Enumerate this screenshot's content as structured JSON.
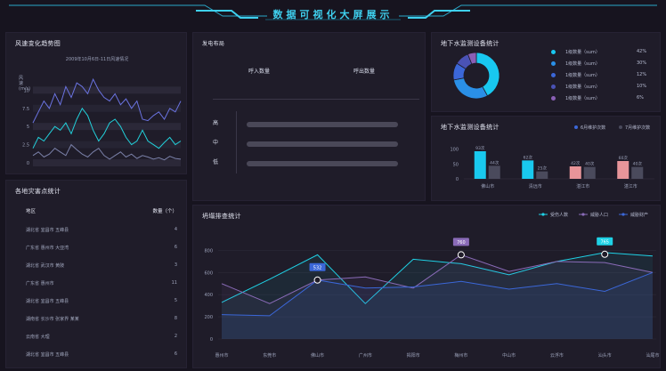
{
  "header": {
    "title": "数据可视化大屏展示"
  },
  "wind": {
    "title": "风速变化趋势图",
    "subtitle": "2009年10月6日-11日风速情况",
    "ylabel": "风速(m/s)",
    "yticks": [
      "10",
      "7.5",
      "5",
      "2.5",
      "0"
    ]
  },
  "disaster": {
    "title": "各地灾害点统计",
    "header_region": "地区",
    "header_count": "数量（个）",
    "rows": [
      {
        "region": "湖北省 宜昌市 五峰县",
        "count": "4"
      },
      {
        "region": "广东省 惠州市 大亚湾",
        "count": "6"
      },
      {
        "region": "湖北省 武汉市 黄陂",
        "count": "3"
      },
      {
        "region": "广东省 惠州市",
        "count": "11"
      },
      {
        "region": "湖北省 宜昌市 五峰县",
        "count": "5"
      },
      {
        "region": "湖南省 长沙市 张家界 某某",
        "count": "8"
      },
      {
        "region": "云南省 大理",
        "count": "2"
      },
      {
        "region": "湖北省 宜昌市 五峰县",
        "count": "6"
      }
    ]
  },
  "power": {
    "title": "发电布局",
    "col1": "呼入数量",
    "col2": "呼出数量",
    "row_labels": [
      "高",
      "中",
      "低"
    ]
  },
  "groundwater": {
    "title": "地下水监测设备统计",
    "legend": [
      {
        "label": "1级数量（sum）",
        "pct": "42%",
        "color": "#18c8f0"
      },
      {
        "label": "1级数量（sum）",
        "pct": "30%",
        "color": "#2a8fe6"
      },
      {
        "label": "1级数量（sum）",
        "pct": "12%",
        "color": "#3b67d8"
      },
      {
        "label": "1级数量（sum）",
        "pct": "10%",
        "color": "#4a52b5"
      },
      {
        "label": "1级数量（sum）",
        "pct": "6%",
        "color": "#8a5fb5"
      }
    ]
  },
  "devices": {
    "title": "地下水监测设备统计",
    "legend1": "6月维护次数",
    "legend2": "7月维护次数",
    "yticks": [
      "100",
      "50",
      "0"
    ]
  },
  "incidents": {
    "title": "坍塌排查统计",
    "legend": [
      "受伤人数",
      "威胁人口",
      "威胁财产"
    ],
    "yticks": [
      "800",
      "600",
      "400",
      "200",
      "0"
    ],
    "tooltips": [
      "532",
      "760",
      "765"
    ]
  },
  "chart_data": [
    {
      "type": "line",
      "title": "风速变化趋势图",
      "subtitle": "2009年10月6日-11日风速情况",
      "ylabel": "风速(m/s)",
      "ylim": [
        0,
        12
      ],
      "series": [
        {
          "values": [
            5.5,
            7.0,
            8.5,
            7.5,
            9.5,
            8.0,
            10.5,
            9.0,
            11.0,
            10.5,
            9.5,
            11.5,
            10.0,
            9.0,
            8.5,
            9.5,
            8.0,
            8.8,
            7.5,
            8.5,
            6.0,
            5.8,
            6.5,
            7.0,
            6.0,
            7.5,
            7.0,
            8.5
          ]
        },
        {
          "values": [
            2.0,
            3.5,
            3.0,
            4.0,
            5.0,
            4.5,
            5.5,
            4.0,
            6.0,
            7.5,
            6.5,
            4.5,
            3.0,
            4.0,
            5.5,
            6.0,
            5.0,
            3.5,
            2.5,
            3.0,
            4.5,
            3.0,
            2.5,
            2.0,
            2.8,
            3.5,
            2.5,
            3.0
          ]
        },
        {
          "values": [
            1.0,
            1.5,
            0.8,
            1.2,
            2.0,
            1.5,
            1.0,
            2.5,
            1.8,
            1.2,
            0.8,
            1.5,
            2.0,
            1.0,
            0.5,
            1.0,
            1.5,
            0.8,
            1.2,
            0.6,
            1.0,
            0.8,
            0.5,
            0.7,
            0.4,
            0.9,
            0.6,
            0.5
          ]
        }
      ]
    },
    {
      "type": "pie",
      "title": "地下水监测设备统计",
      "values": [
        42,
        30,
        12,
        10,
        6
      ]
    },
    {
      "type": "bar",
      "title": "地下水监测设备统计",
      "categories": [
        "佛山市",
        "清远市",
        "湛江市",
        "湛江市"
      ],
      "series": [
        {
          "name": "6月维护次数",
          "values": [
            93,
            62,
            42,
            60
          ],
          "labels": [
            "93次",
            "62次",
            "42次",
            "60次"
          ],
          "colors": [
            "#19c9ee",
            "#19c9ee",
            "#e8959a",
            "#e8959a"
          ]
        },
        {
          "name": "7月维护次数",
          "values": [
            44,
            25,
            40,
            40
          ],
          "labels": [
            "44次",
            "25次",
            "40次",
            "40次"
          ]
        }
      ],
      "ylim": [
        0,
        120
      ]
    },
    {
      "type": "line",
      "title": "坍塌排查统计",
      "categories": [
        "惠州市",
        "东莞市",
        "佛山市",
        "广州市",
        "揭阳市",
        "梅州市",
        "中山市",
        "云浮市",
        "汕头市",
        "汕尾市"
      ],
      "ylim": [
        0,
        900
      ],
      "series": [
        {
          "name": "受伤人数",
          "values": [
            330,
            540,
            760,
            320,
            720,
            680,
            580,
            700,
            780,
            750
          ]
        },
        {
          "name": "威胁人口",
          "values": [
            500,
            320,
            532,
            560,
            460,
            760,
            610,
            700,
            690,
            600
          ]
        },
        {
          "name": "威胁财产",
          "values": [
            220,
            210,
            532,
            460,
            470,
            520,
            450,
            500,
            430,
            600
          ]
        }
      ]
    }
  ]
}
